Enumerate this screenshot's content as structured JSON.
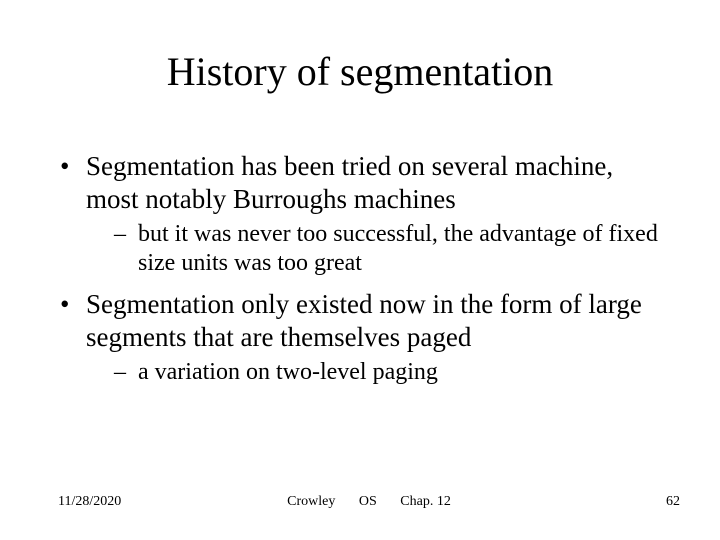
{
  "title": "History of segmentation",
  "bullets": [
    {
      "text": "Segmentation has been tried on several machine, most notably Burroughs machines",
      "sub": [
        "but it was never too successful, the advantage of fixed size units was too great"
      ]
    },
    {
      "text": "Segmentation only existed now in the form of large segments that are themselves paged",
      "sub": [
        "a variation on two-level paging"
      ]
    }
  ],
  "footer": {
    "date": "11/28/2020",
    "author": "Crowley",
    "course": "OS",
    "chapter": "Chap. 12",
    "page": "62"
  },
  "style": {
    "background": "#ffffff",
    "text_color": "#000000",
    "title_fontsize": 40,
    "body_fontsize": 27,
    "sub_fontsize": 24,
    "footer_fontsize": 14,
    "font_family": "Times New Roman"
  }
}
